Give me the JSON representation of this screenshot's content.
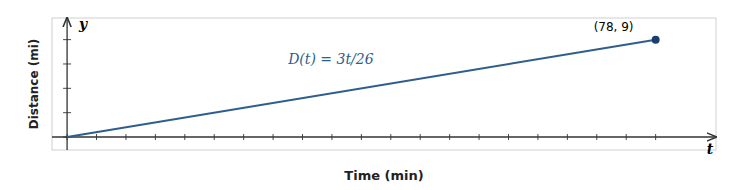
{
  "chart_data": {
    "type": "line",
    "x": [
      0,
      78
    ],
    "series": [
      {
        "type": "line",
        "color": "#2E5E8E",
        "values": [
          0,
          9
        ]
      },
      {
        "type": "scatter",
        "color": "#1a3f6f",
        "marker": "circle",
        "values": [
          null,
          9
        ]
      }
    ],
    "xlim": [
      -2,
      86
    ],
    "ylim": [
      -1.2,
      11.0
    ],
    "xticks": [
      0,
      3.9,
      7.8,
      11.7,
      15.6,
      19.5,
      23.4,
      27.3,
      31.2,
      35.1,
      39,
      42.9,
      46.8,
      50.7,
      54.6,
      58.5,
      62.4,
      66.3,
      70.2,
      74.1,
      78
    ],
    "yticks": [
      0,
      2.25,
      4.5,
      6.75,
      9
    ],
    "tick_labels": false,
    "grid": false,
    "xlabel": "Time (min)",
    "ylabel": "Distance (mi)",
    "annotations": [
      "(78, 9)",
      "D(t) = 3t/26",
      "t",
      "y"
    ]
  }
}
